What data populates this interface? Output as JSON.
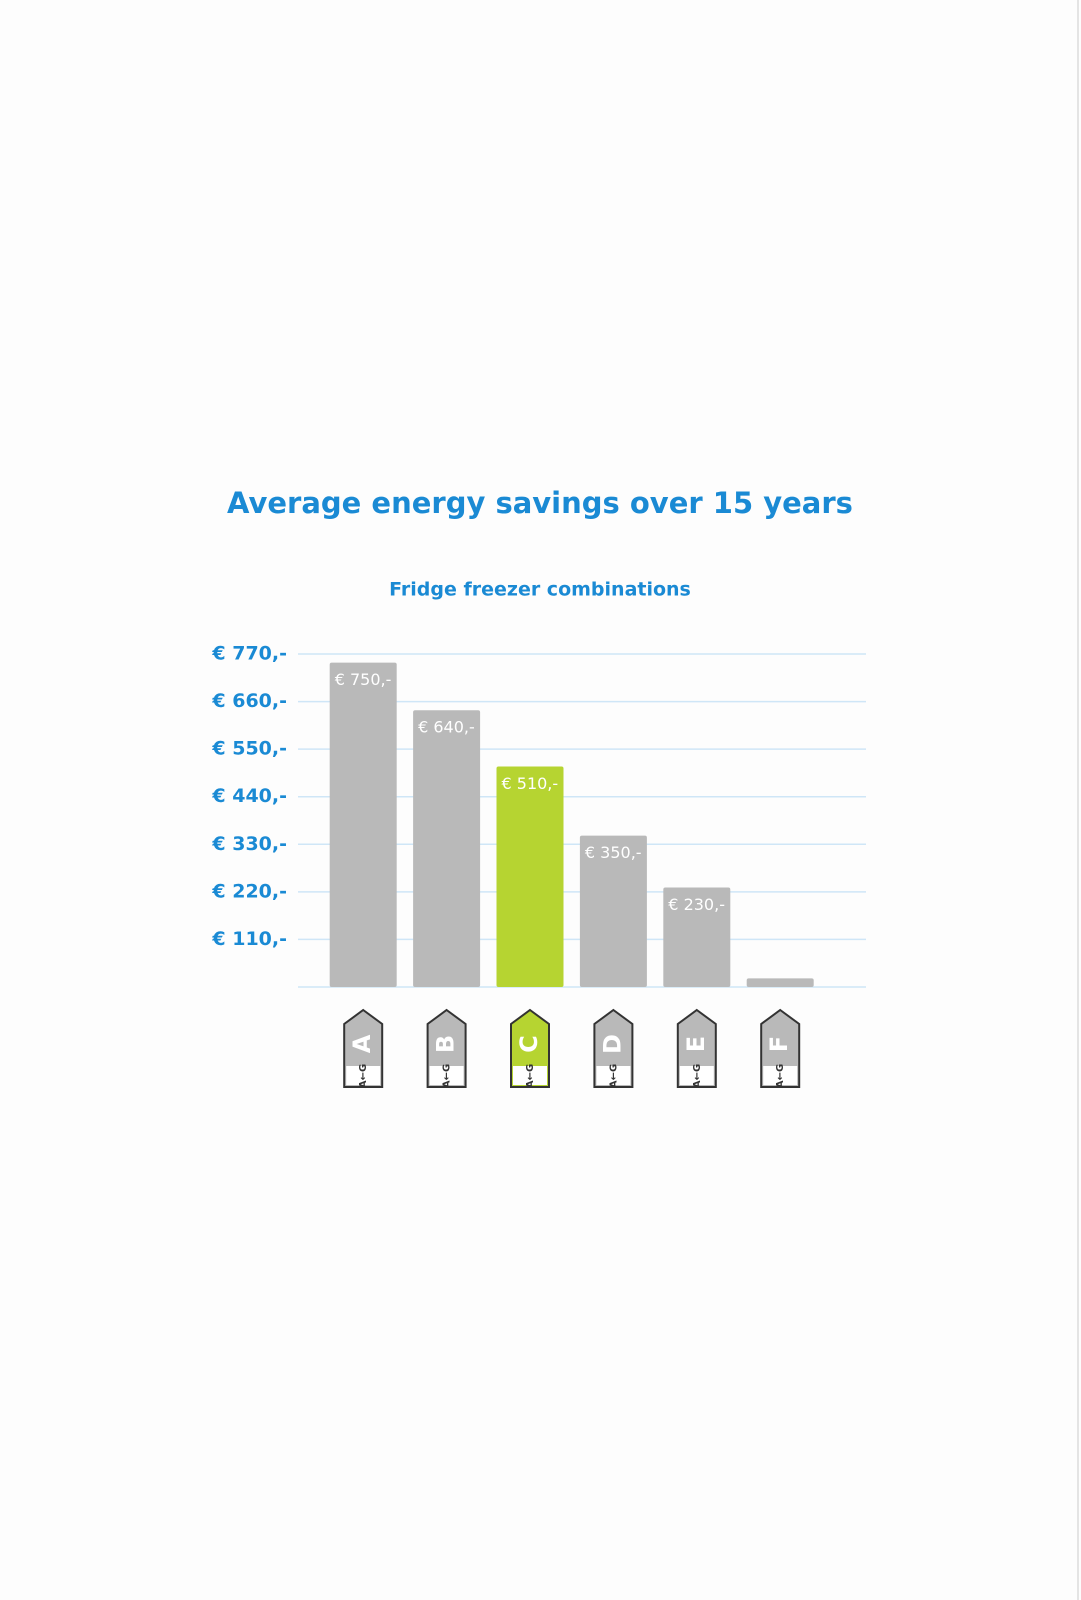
{
  "chart_data": {
    "type": "bar",
    "title": "Average energy savings over 15 years",
    "subtitle": "Fridge freezer combinations",
    "categories": [
      "A",
      "B",
      "C",
      "D",
      "E",
      "F"
    ],
    "values": [
      750,
      640,
      510,
      350,
      230,
      20
    ],
    "value_labels": [
      "€ 750,-",
      "€ 640,-",
      "€ 510,-",
      "€ 350,-",
      "€ 230,-",
      null
    ],
    "colors": [
      "#b9b9b9",
      "#b9b9b9",
      "#b6d431",
      "#b9b9b9",
      "#b9b9b9",
      "#b9b9b9"
    ],
    "label_scale": "A←G",
    "ylim": [
      0,
      770
    ],
    "yticks": [
      {
        "value": 110,
        "label": "€ 110,-"
      },
      {
        "value": 220,
        "label": "€ 220,-"
      },
      {
        "value": 330,
        "label": "€ 330,-"
      },
      {
        "value": 440,
        "label": "€ 440,-"
      },
      {
        "value": 550,
        "label": "€ 550,-"
      },
      {
        "value": 660,
        "label": "€ 660,-"
      },
      {
        "value": 770,
        "label": "€ 770,-"
      }
    ],
    "grid": true
  }
}
